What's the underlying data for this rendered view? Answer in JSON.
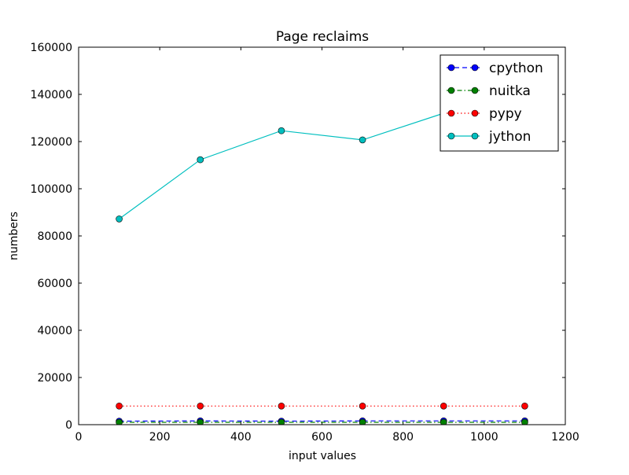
{
  "chart_data": {
    "type": "line",
    "title": "Page reclaims",
    "xlabel": "input values",
    "ylabel": "numbers",
    "xlim": [
      0,
      1200
    ],
    "ylim": [
      0,
      160000
    ],
    "xticks": [
      0,
      200,
      400,
      600,
      800,
      1000,
      1200
    ],
    "yticks": [
      0,
      20000,
      40000,
      60000,
      80000,
      100000,
      120000,
      140000,
      160000
    ],
    "grid": false,
    "legend_position": "top-right",
    "x": [
      100,
      300,
      500,
      700,
      900,
      1100
    ],
    "series": [
      {
        "name": "cpython",
        "values": [
          1500,
          1600,
          1500,
          1600,
          1600,
          1600
        ],
        "color": "#0000ff",
        "line_style": "dashed",
        "marker": "circle"
      },
      {
        "name": "nuitka",
        "values": [
          1000,
          1000,
          1000,
          1000,
          1000,
          1000
        ],
        "color": "#008000",
        "line_style": "dashdot",
        "marker": "circle"
      },
      {
        "name": "pypy",
        "values": [
          7900,
          7900,
          7900,
          7900,
          7900,
          7900
        ],
        "color": "#ff0000",
        "line_style": "dotted",
        "marker": "circle"
      },
      {
        "name": "jython",
        "values": [
          87200,
          112300,
          124600,
          120700,
          132000,
          143500
        ],
        "color": "#00bfbf",
        "line_style": "solid",
        "marker": "circle"
      }
    ]
  }
}
